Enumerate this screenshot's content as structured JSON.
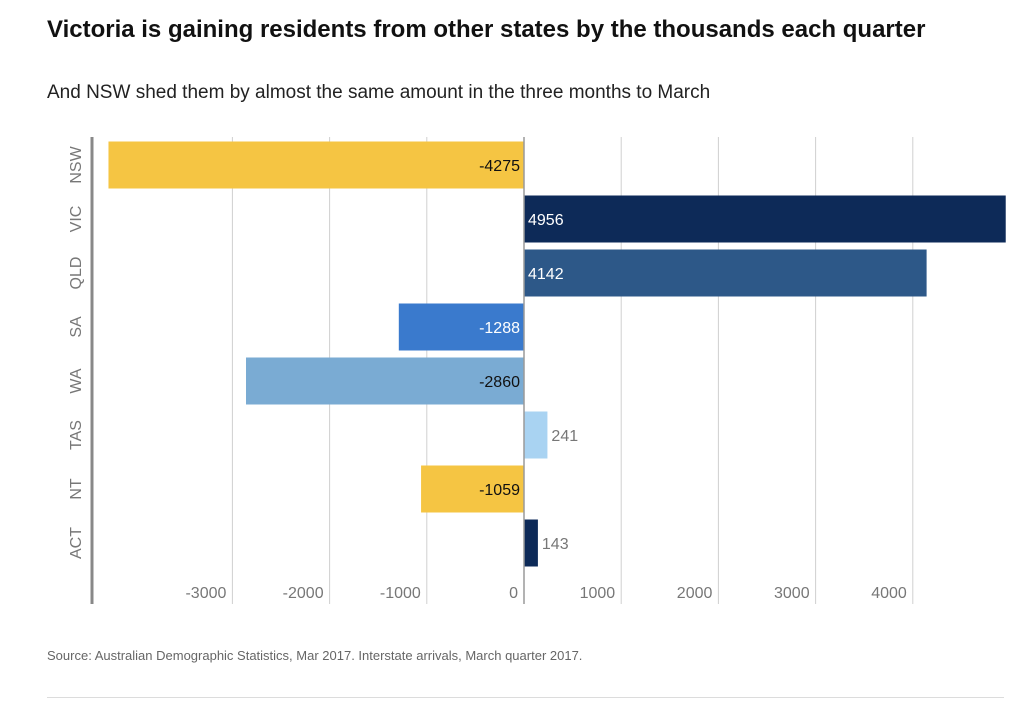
{
  "header": {
    "title": "Victoria is gaining residents from other states by the thousands each quarter",
    "subtitle": "And NSW shed them by almost the same amount in the three months to March"
  },
  "footer": {
    "source": "Source: Australian Demographic Statistics, Mar 2017.  Interstate arrivals, March quarter 2017."
  },
  "chart_data": {
    "type": "bar",
    "orientation": "horizontal",
    "categories": [
      "NSW",
      "VIC",
      "QLD",
      "SA",
      "WA",
      "TAS",
      "NT",
      "ACT"
    ],
    "values": [
      -4275,
      4956,
      4142,
      -1288,
      -2860,
      241,
      -1059,
      143
    ],
    "colors": [
      "#f5c543",
      "#0d2a58",
      "#2d5888",
      "#3a7acd",
      "#7aabd3",
      "#a9d3f2",
      "#f5c543",
      "#0d2a58"
    ],
    "xlim": [
      -4300,
      4960
    ],
    "xticks": [
      -3000,
      -2000,
      -1000,
      0,
      1000,
      2000,
      3000,
      4000
    ],
    "grid": true,
    "legend": "none"
  }
}
